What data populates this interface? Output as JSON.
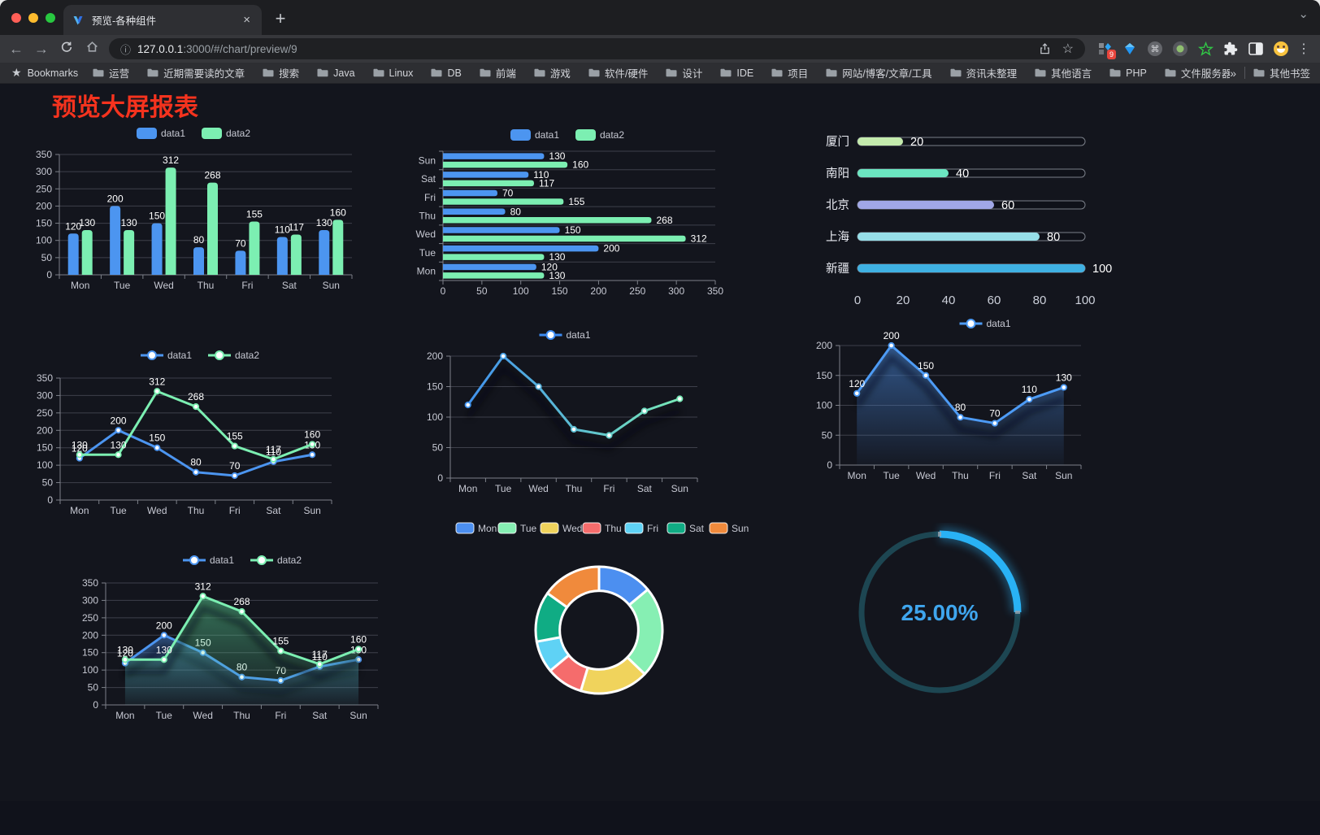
{
  "window": {
    "tab_title": "预览-各种组件",
    "tab_close": "×",
    "new_tab_plus": "+",
    "tab_search_chevron": "⌄"
  },
  "toolbar": {
    "back": "←",
    "forward": "→",
    "url_host": "127.0.0.1",
    "url_rest": ":3000/#/chart/preview/9",
    "info_icon": "ⓘ",
    "bookmark_star": "☆",
    "extension_badge": "9",
    "menu_dots": "⋮"
  },
  "bookmarks_bar": {
    "root_star": "★",
    "root_label": "Bookmarks",
    "folders": [
      "运营",
      "近期需要读的文章",
      "搜索",
      "Java",
      "Linux",
      "DB",
      "前端",
      "游戏",
      "软件/硬件",
      "设计",
      "IDE",
      "项目",
      "网站/博客/文章/工具",
      "资讯未整理",
      "其他语言",
      "PHP",
      "文件服务器"
    ],
    "overflow": "»",
    "other_bookmarks": "其他书签"
  },
  "page": {
    "title": "预览大屏报表",
    "title_color": "#f5331e",
    "background": "#13151d"
  },
  "chart_data": [
    {
      "id": "bar-vertical",
      "type": "bar",
      "title": "",
      "legend_position": "top",
      "categories": [
        "Mon",
        "Tue",
        "Wed",
        "Thu",
        "Fri",
        "Sat",
        "Sun"
      ],
      "series": [
        {
          "name": "data1",
          "color": "#4c95f0",
          "values": [
            120,
            200,
            150,
            80,
            70,
            110,
            130
          ]
        },
        {
          "name": "data2",
          "color": "#7cefb2",
          "values": [
            130,
            130,
            312,
            268,
            155,
            117,
            160
          ]
        }
      ],
      "ylim": [
        0,
        350
      ],
      "ytick_step": 50,
      "grid": true
    },
    {
      "id": "bar-horizontal",
      "type": "bar-horizontal",
      "title": "",
      "legend_position": "top",
      "categories": [
        "Mon",
        "Tue",
        "Wed",
        "Thu",
        "Fri",
        "Sat",
        "Sun"
      ],
      "series": [
        {
          "name": "data1",
          "color": "#4c95f0",
          "values": [
            120,
            200,
            150,
            80,
            70,
            110,
            130
          ]
        },
        {
          "name": "data2",
          "color": "#7cefb2",
          "values": [
            130,
            130,
            312,
            268,
            155,
            117,
            160
          ]
        }
      ],
      "xlim": [
        0,
        350
      ],
      "xtick_step": 50,
      "grid": true
    },
    {
      "id": "capsule",
      "type": "capsule-bar",
      "categories": [
        "厦门",
        "南阳",
        "北京",
        "上海",
        "新疆"
      ],
      "values": [
        20,
        40,
        60,
        80,
        100
      ],
      "colors": [
        "#c4ebad",
        "#6be6c1",
        "#a0a7e6",
        "#96dee8",
        "#3fb1e3"
      ],
      "xlim": [
        0,
        100
      ],
      "xticks": [
        0,
        20,
        40,
        60,
        80,
        100
      ]
    },
    {
      "id": "line-dual",
      "type": "line",
      "legend_position": "top",
      "labels": true,
      "shadow": false,
      "categories": [
        "Mon",
        "Tue",
        "Wed",
        "Thu",
        "Fri",
        "Sat",
        "Sun"
      ],
      "series": [
        {
          "name": "data1",
          "color": "#4c95f0",
          "values": [
            120,
            200,
            150,
            80,
            70,
            110,
            130
          ]
        },
        {
          "name": "data2",
          "color": "#7cefb2",
          "values": [
            130,
            130,
            312,
            268,
            155,
            117,
            160
          ]
        }
      ],
      "ylim": [
        0,
        350
      ],
      "ytick_step": 50,
      "grid": true
    },
    {
      "id": "line-gradient",
      "type": "line",
      "legend_position": "top",
      "labels": false,
      "shadow": true,
      "categories": [
        "Mon",
        "Tue",
        "Wed",
        "Thu",
        "Fri",
        "Sat",
        "Sun"
      ],
      "series": [
        {
          "name": "data1",
          "color_gradient": [
            "#3d8bf2",
            "#7cf0b2"
          ],
          "values": [
            120,
            200,
            150,
            80,
            70,
            110,
            130
          ]
        }
      ],
      "ylim": [
        0,
        200
      ],
      "ytick_step": 50,
      "grid": true
    },
    {
      "id": "area-single",
      "type": "area",
      "legend_position": "top",
      "labels": true,
      "shadow": true,
      "categories": [
        "Mon",
        "Tue",
        "Wed",
        "Thu",
        "Fri",
        "Sat",
        "Sun"
      ],
      "series": [
        {
          "name": "data1",
          "color": "#4d9bf5",
          "area": [
            "rgba(70,130,210,0.6)",
            "rgba(70,130,210,0.04)"
          ],
          "values": [
            120,
            200,
            150,
            80,
            70,
            110,
            130
          ]
        }
      ],
      "ylim": [
        0,
        200
      ],
      "ytick_step": 50,
      "grid": true
    },
    {
      "id": "area-dual",
      "type": "area",
      "legend_position": "top",
      "labels": true,
      "shadow": true,
      "categories": [
        "Mon",
        "Tue",
        "Wed",
        "Thu",
        "Fri",
        "Sat",
        "Sun"
      ],
      "series": [
        {
          "name": "data1",
          "color": "#4c95f0",
          "area": [
            "rgba(70,130,210,0.5)",
            "rgba(70,130,210,0.04)"
          ],
          "values": [
            120,
            200,
            150,
            80,
            70,
            110,
            130
          ]
        },
        {
          "name": "data2",
          "color": "#7cefb2",
          "area": [
            "rgba(90,210,150,0.5)",
            "rgba(90,210,150,0.04)"
          ],
          "values": [
            130,
            130,
            312,
            268,
            155,
            117,
            160
          ]
        }
      ],
      "ylim": [
        0,
        350
      ],
      "ytick_step": 50,
      "grid": true
    },
    {
      "id": "donut",
      "type": "pie",
      "legend_position": "top",
      "labels": [
        "Mon",
        "Tue",
        "Wed",
        "Thu",
        "Fri",
        "Sat",
        "Sun"
      ],
      "values": [
        120,
        200,
        150,
        80,
        70,
        110,
        130
      ],
      "colors": [
        "#4c8ff0",
        "#86efb3",
        "#f0d35c",
        "#f56c6c",
        "#5fd2f5",
        "#10ac84",
        "#f08a3c"
      ],
      "inner_radius_ratio": 0.62,
      "border_color": "#ffffff"
    },
    {
      "id": "gauge",
      "type": "gauge",
      "value": 25,
      "max": 100,
      "label": "25.00%",
      "color": "#29b2f5",
      "track_color": "#1d4652",
      "text_color": "#3fa6ee"
    }
  ]
}
